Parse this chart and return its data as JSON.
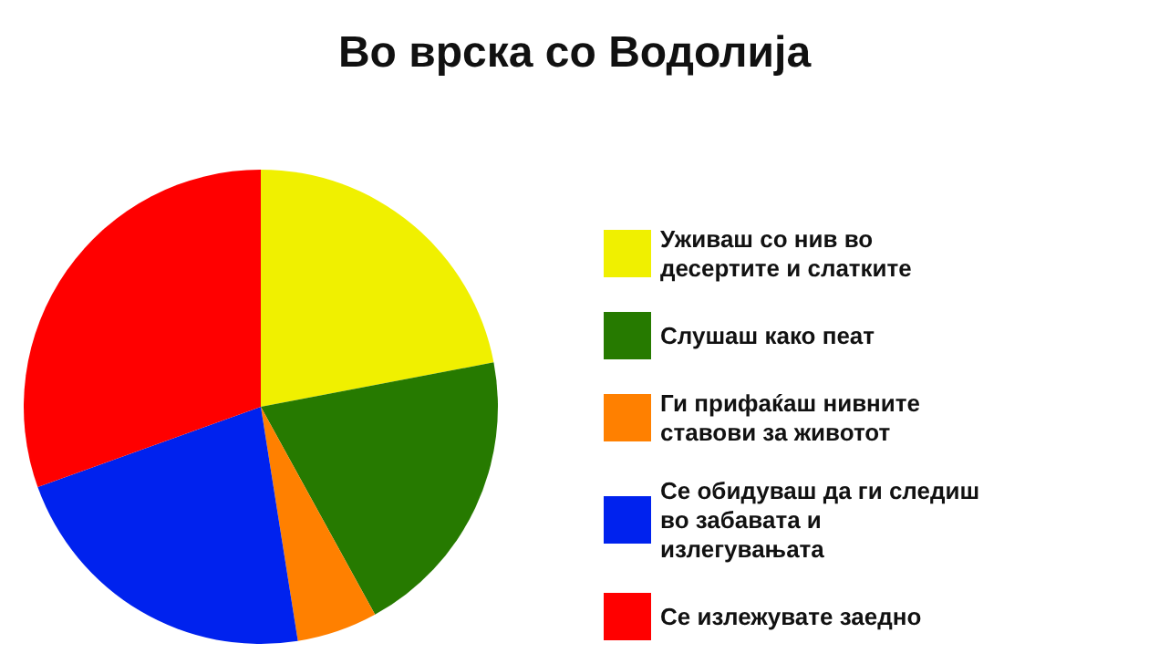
{
  "chart_data": {
    "type": "pie",
    "title": "Во врска со Водолија",
    "categories": [
      "Уживаш со нив во десертите и слатките",
      "Слушаш како пеат",
      "Ги прифаќаш нивните ставови за животот",
      "Се обидуваш да ги следиш во забавата и излегувањата",
      "Се излежувате заедно"
    ],
    "values": [
      22,
      20,
      5.5,
      22,
      30.5
    ],
    "colors": [
      "#f0f000",
      "#267a00",
      "#ff8000",
      "#0022ee",
      "#ff0000"
    ],
    "legend": "right"
  }
}
